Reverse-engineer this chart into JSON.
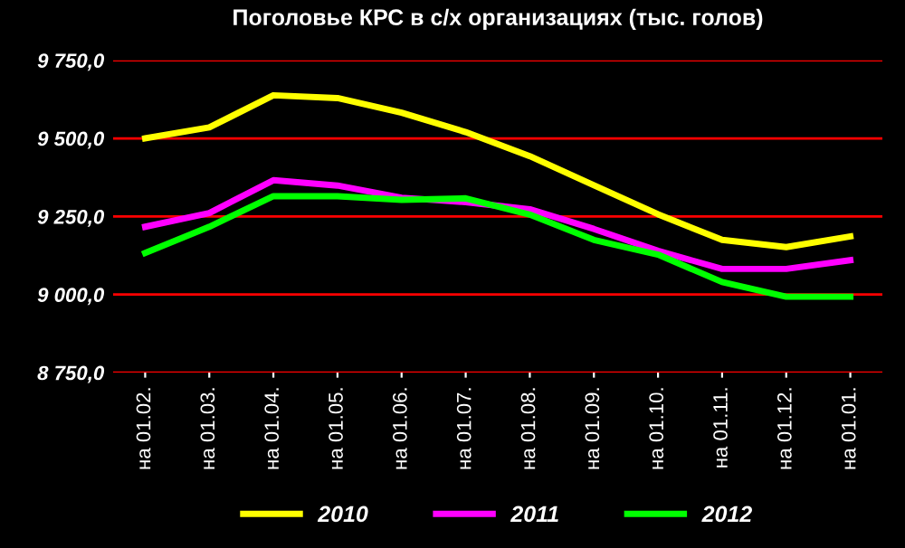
{
  "chart_data": {
    "type": "line",
    "title": "Поголовье КРС в с/х организациях (тыс. голов)",
    "categories": [
      "на 01.02.",
      "на 01.03.",
      "на 01.04.",
      "на 01.05.",
      "на 01.06.",
      "на 01.07.",
      "на 01.08.",
      "на 01.09.",
      "на 01.10.",
      "на 01.11.",
      "на 01.12.",
      "на 01.01."
    ],
    "series": [
      {
        "name": "2010",
        "color": "#ffff00",
        "values": [
          9500,
          9535,
          9638,
          9629,
          9582,
          9520,
          9443,
          9350,
          9257,
          9175,
          9152,
          9186
        ]
      },
      {
        "name": "2011",
        "color": "#ff00ff",
        "values": [
          9217,
          9261,
          9366,
          9349,
          9310,
          9296,
          9273,
          9210,
          9140,
          9082,
          9082,
          9110
        ]
      },
      {
        "name": "2012",
        "color": "#00ff00",
        "values": [
          9133,
          9217,
          9315,
          9315,
          9303,
          9308,
          9256,
          9175,
          9128,
          9040,
          8993,
          8993
        ]
      }
    ],
    "ylim": [
      8750,
      9750
    ],
    "yticks": [
      {
        "value": 8750,
        "label": "8 750,0"
      },
      {
        "value": 9000,
        "label": "9 000,0"
      },
      {
        "value": 9250,
        "label": "9 250,0"
      },
      {
        "value": 9500,
        "label": "9 500,0"
      },
      {
        "value": 9750,
        "label": "9 750,0"
      }
    ],
    "grid": "y",
    "legend": "bottom",
    "marker": "none",
    "line_style": "solid"
  }
}
